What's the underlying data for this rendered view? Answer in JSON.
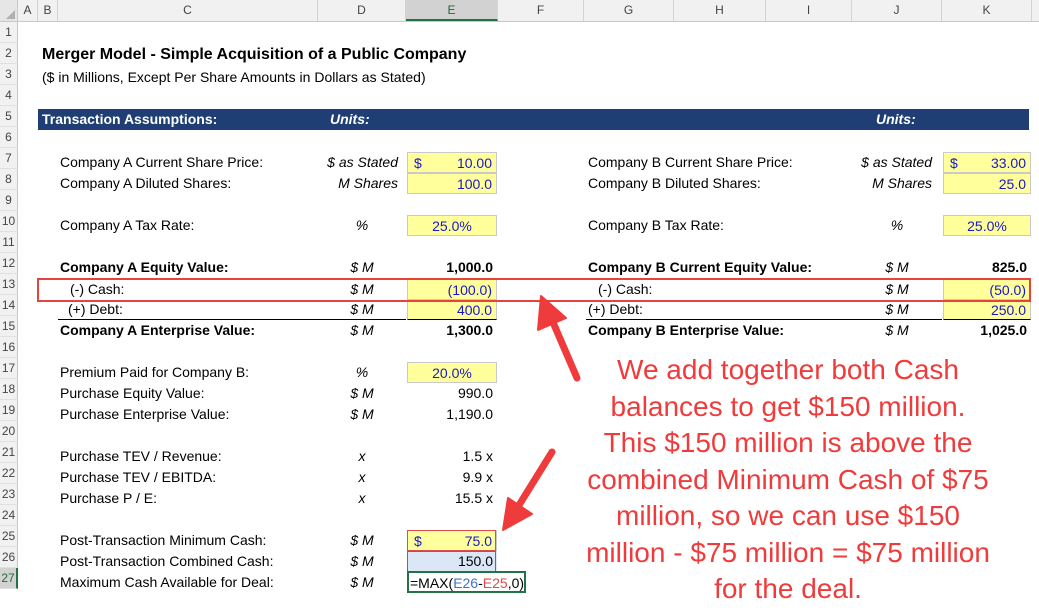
{
  "columns": [
    "A",
    "B",
    "C",
    "D",
    "E",
    "F",
    "G",
    "H",
    "I",
    "J",
    "K"
  ],
  "rows": [
    "1",
    "2",
    "3",
    "4",
    "5",
    "6",
    "7",
    "8",
    "9",
    "10",
    "11",
    "12",
    "13",
    "14",
    "15",
    "16",
    "17",
    "18",
    "19",
    "20",
    "21",
    "22",
    "23",
    "24",
    "25",
    "26",
    "27"
  ],
  "title": "Merger Model - Simple Acquisition of a Public Company",
  "subtitle": "($ in Millions, Except Per Share Amounts in Dollars as Stated)",
  "band": {
    "label": "Transaction Assumptions:",
    "units_left": "Units:",
    "units_right": "Units:"
  },
  "left": {
    "share_price": {
      "label": "Company A Current Share Price:",
      "unit": "$ as Stated",
      "dollar": "$",
      "value": "10.00"
    },
    "diluted_shares": {
      "label": "Company A Diluted Shares:",
      "unit": "M Shares",
      "value": "100.0"
    },
    "tax_rate": {
      "label": "Company A Tax Rate:",
      "unit": "%",
      "value": "25.0%"
    },
    "equity_value": {
      "label": "Company A Equity Value:",
      "unit": "$ M",
      "value": "1,000.0"
    },
    "cash": {
      "label": "(-) Cash:",
      "unit": "$ M",
      "value": "(100.0)"
    },
    "debt": {
      "label": "(+) Debt:",
      "unit": "$ M",
      "value": "400.0"
    },
    "enterprise_value": {
      "label": "Company A Enterprise Value:",
      "unit": "$ M",
      "value": "1,300.0"
    },
    "premium": {
      "label": "Premium Paid for Company B:",
      "unit": "%",
      "value": "20.0%"
    },
    "purchase_equity": {
      "label": "Purchase Equity Value:",
      "unit": "$ M",
      "value": "990.0"
    },
    "purchase_ev": {
      "label": "Purchase Enterprise Value:",
      "unit": "$ M",
      "value": "1,190.0"
    },
    "tev_revenue": {
      "label": "Purchase TEV / Revenue:",
      "unit": "x",
      "value": "1.5 x"
    },
    "tev_ebitda": {
      "label": "Purchase TEV / EBITDA:",
      "unit": "x",
      "value": "9.9 x"
    },
    "pe": {
      "label": "Purchase P / E:",
      "unit": "x",
      "value": "15.5 x"
    },
    "min_cash": {
      "label": "Post-Transaction Minimum Cash:",
      "unit": "$ M",
      "dollar": "$",
      "value": "75.0"
    },
    "combined_cash": {
      "label": "Post-Transaction Combined Cash:",
      "unit": "$ M",
      "value": "150.0"
    },
    "max_cash": {
      "label": "Maximum Cash Available for Deal:",
      "unit": "$ M"
    }
  },
  "right": {
    "share_price": {
      "label": "Company B Current Share Price:",
      "unit": "$ as Stated",
      "dollar": "$",
      "value": "33.00"
    },
    "diluted_shares": {
      "label": "Company B Diluted Shares:",
      "unit": "M Shares",
      "value": "25.0"
    },
    "tax_rate": {
      "label": "Company B Tax Rate:",
      "unit": "%",
      "value": "25.0%"
    },
    "equity_value": {
      "label": "Company B Current Equity Value:",
      "unit": "$ M",
      "value": "825.0"
    },
    "cash": {
      "label": "(-) Cash:",
      "unit": "$ M",
      "value": "(50.0)"
    },
    "debt": {
      "label": "(+) Debt:",
      "unit": "$ M",
      "value": "250.0"
    },
    "enterprise_value": {
      "label": "Company B Enterprise Value:",
      "unit": "$ M",
      "value": "1,025.0"
    }
  },
  "formula": {
    "prefix": "=MAX(",
    "ref1": "E26",
    "minus": "-",
    "ref2": "E25",
    "suffix": ",0)"
  },
  "annotation": {
    "lines": [
      "We add together both Cash",
      "balances to get $150 million.",
      "This $150 million is above the",
      "combined Minimum Cash of $75",
      "million, so we can use $150",
      "million - $75 million = $75 million",
      "for the deal."
    ],
    "color": "#ef3b3b"
  },
  "colors": {
    "band": "#1f3f74",
    "input_fill": "#ffff9c",
    "input_text": "#1818c8",
    "highlight_border": "#e8423f"
  }
}
